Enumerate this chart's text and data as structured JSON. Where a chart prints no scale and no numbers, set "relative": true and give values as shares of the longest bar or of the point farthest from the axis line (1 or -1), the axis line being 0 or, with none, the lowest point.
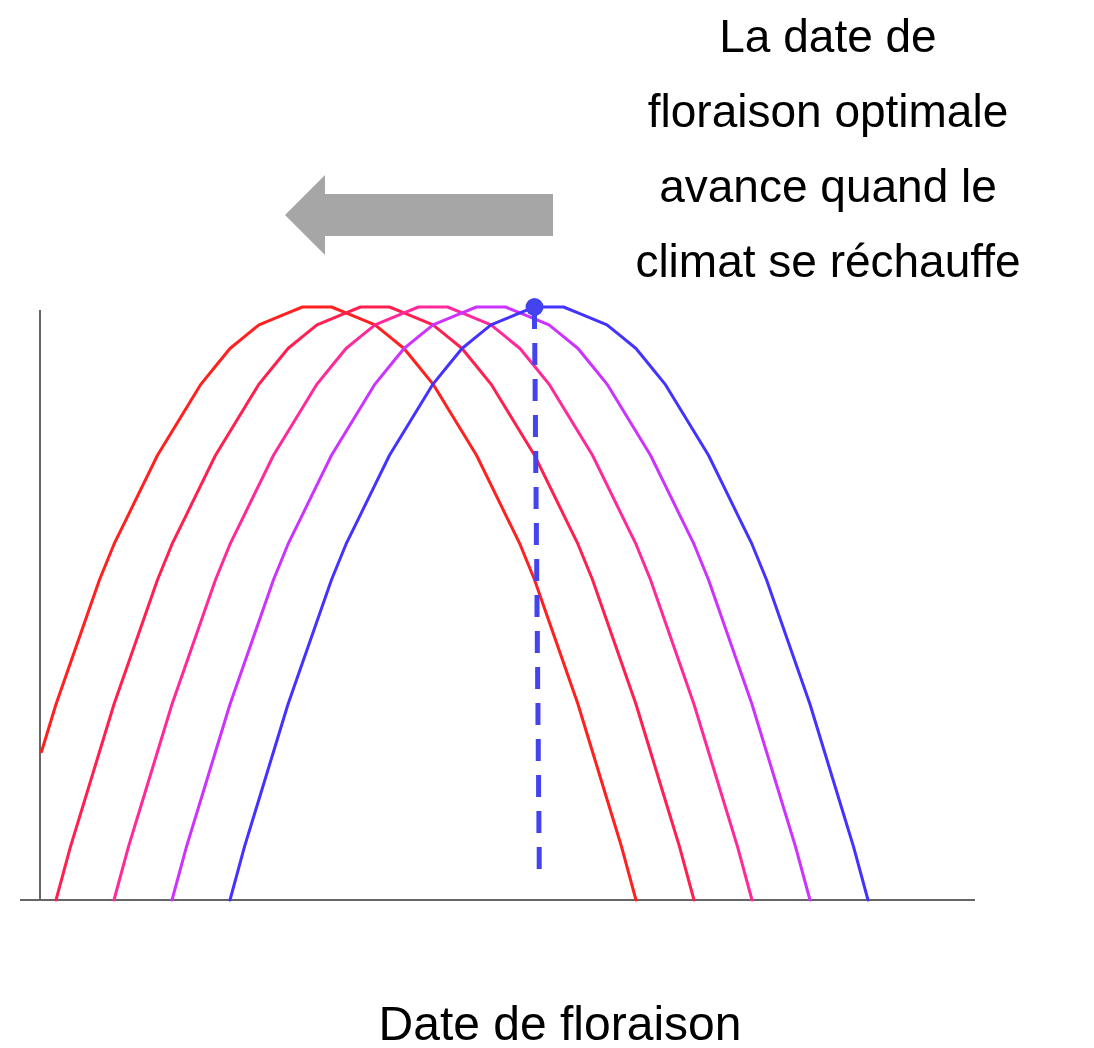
{
  "chart_data": {
    "type": "line",
    "relative": true,
    "xlabel": "Date de floraison",
    "annotations": [
      "La date de floraison optimale avance quand le climat se réchauffe"
    ],
    "categories": [
      null,
      null,
      null,
      null,
      null,
      null,
      null,
      null,
      null,
      null,
      null,
      null,
      null,
      null,
      null,
      null,
      null,
      null,
      null,
      null,
      null,
      null,
      null,
      null,
      null,
      null,
      null,
      null,
      null,
      null,
      null,
      null,
      null,
      null,
      null,
      null,
      null,
      null,
      null,
      null,
      null,
      null,
      null,
      null,
      null,
      null,
      null,
      null,
      null,
      null,
      null,
      null,
      null,
      null,
      null,
      null,
      null,
      null,
      null,
      null,
      null,
      null,
      null,
      null,
      null
    ],
    "series": [
      {
        "color": "#ff2020",
        "values": [
          0.25,
          0.33,
          0.4,
          0.47,
          0.54,
          0.6,
          0.65,
          0.7,
          0.75,
          0.79,
          0.83,
          0.87,
          0.9,
          0.93,
          0.95,
          0.97,
          0.98,
          0.99,
          1,
          1,
          1,
          0.99,
          0.98,
          0.97,
          0.95,
          0.93,
          0.9,
          0.87,
          0.83,
          0.79,
          0.75,
          0.7,
          0.65,
          0.6,
          0.54,
          0.47,
          0.4,
          0.33,
          0.25,
          0.17,
          0.09,
          0,
          null,
          null,
          null,
          null,
          null,
          null,
          null,
          null,
          null,
          null,
          null,
          null,
          null,
          null,
          null,
          null,
          null,
          null,
          null,
          null,
          null,
          null,
          null
        ]
      },
      {
        "color": "#ff2050",
        "values": [
          null,
          0,
          0.09,
          0.17,
          0.25,
          0.33,
          0.4,
          0.47,
          0.54,
          0.6,
          0.65,
          0.7,
          0.75,
          0.79,
          0.83,
          0.87,
          0.9,
          0.93,
          0.95,
          0.97,
          0.98,
          0.99,
          1,
          1,
          1,
          0.99,
          0.98,
          0.97,
          0.95,
          0.93,
          0.9,
          0.87,
          0.83,
          0.79,
          0.75,
          0.7,
          0.65,
          0.6,
          0.54,
          0.47,
          0.4,
          0.33,
          0.25,
          0.17,
          0.09,
          0,
          null,
          null,
          null,
          null,
          null,
          null,
          null,
          null,
          null,
          null,
          null,
          null,
          null,
          null,
          null,
          null,
          null,
          null,
          null
        ]
      },
      {
        "color": "#ff2a9a",
        "values": [
          null,
          null,
          null,
          null,
          null,
          0,
          0.09,
          0.17,
          0.25,
          0.33,
          0.4,
          0.47,
          0.54,
          0.6,
          0.65,
          0.7,
          0.75,
          0.79,
          0.83,
          0.87,
          0.9,
          0.93,
          0.95,
          0.97,
          0.98,
          0.99,
          1,
          1,
          1,
          0.99,
          0.98,
          0.97,
          0.95,
          0.93,
          0.9,
          0.87,
          0.83,
          0.79,
          0.75,
          0.7,
          0.65,
          0.6,
          0.54,
          0.47,
          0.4,
          0.33,
          0.25,
          0.17,
          0.09,
          0,
          null,
          null,
          null,
          null,
          null,
          null,
          null,
          null,
          null,
          null,
          null,
          null,
          null,
          null,
          null
        ]
      },
      {
        "color": "#cc33ff",
        "values": [
          null,
          null,
          null,
          null,
          null,
          null,
          null,
          null,
          null,
          0,
          0.09,
          0.17,
          0.25,
          0.33,
          0.4,
          0.47,
          0.54,
          0.6,
          0.65,
          0.7,
          0.75,
          0.79,
          0.83,
          0.87,
          0.9,
          0.93,
          0.95,
          0.97,
          0.98,
          0.99,
          1,
          1,
          1,
          0.99,
          0.98,
          0.97,
          0.95,
          0.93,
          0.9,
          0.87,
          0.83,
          0.79,
          0.75,
          0.7,
          0.65,
          0.6,
          0.54,
          0.47,
          0.4,
          0.33,
          0.25,
          0.17,
          0.09,
          0,
          null,
          null,
          null,
          null,
          null,
          null,
          null,
          null,
          null,
          null,
          null
        ]
      },
      {
        "color": "#4433ff",
        "values": [
          null,
          null,
          null,
          null,
          null,
          null,
          null,
          null,
          null,
          null,
          null,
          null,
          null,
          0,
          0.09,
          0.17,
          0.25,
          0.33,
          0.4,
          0.47,
          0.54,
          0.6,
          0.65,
          0.7,
          0.75,
          0.79,
          0.83,
          0.87,
          0.9,
          0.93,
          0.95,
          0.97,
          0.98,
          0.99,
          1,
          1,
          1,
          0.99,
          0.98,
          0.97,
          0.95,
          0.93,
          0.9,
          0.87,
          0.83,
          0.79,
          0.75,
          0.7,
          0.65,
          0.6,
          0.54,
          0.47,
          0.4,
          0.33,
          0.25,
          0.17,
          0.09,
          0,
          null,
          null,
          null,
          null,
          null,
          null,
          null
        ]
      }
    ]
  }
}
